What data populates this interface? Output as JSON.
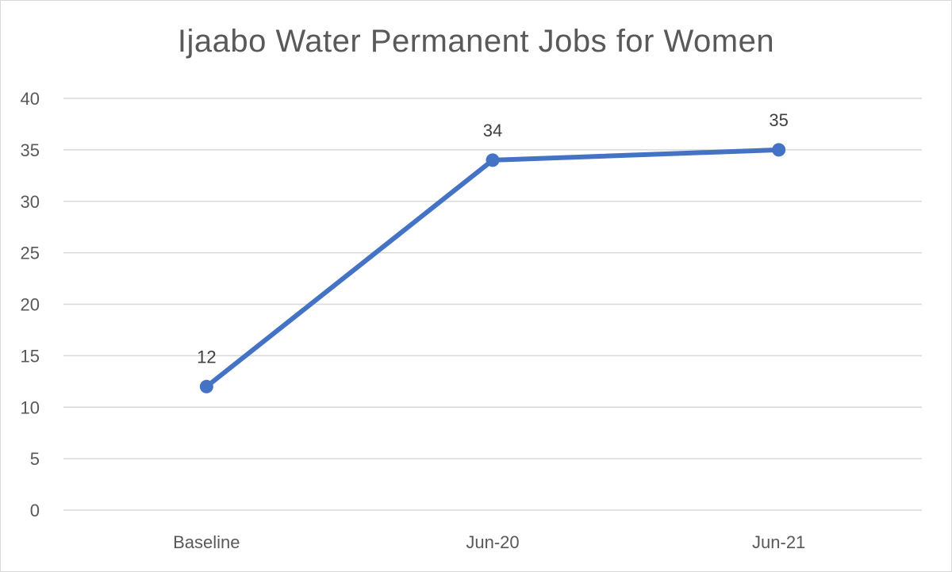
{
  "chart_data": {
    "type": "line",
    "title": "Ijaabo Water Permanent Jobs for Women",
    "categories": [
      "Baseline",
      "Jun-20",
      "Jun-21"
    ],
    "series": [
      {
        "values": [
          12,
          34,
          35
        ],
        "color": "#4472c4"
      }
    ],
    "ylim": [
      0,
      40
    ],
    "yticks": [
      0,
      5,
      10,
      15,
      20,
      25,
      30,
      35,
      40
    ],
    "data_labels": true,
    "grid": true,
    "legend": "none",
    "xlabel": "",
    "ylabel": ""
  }
}
